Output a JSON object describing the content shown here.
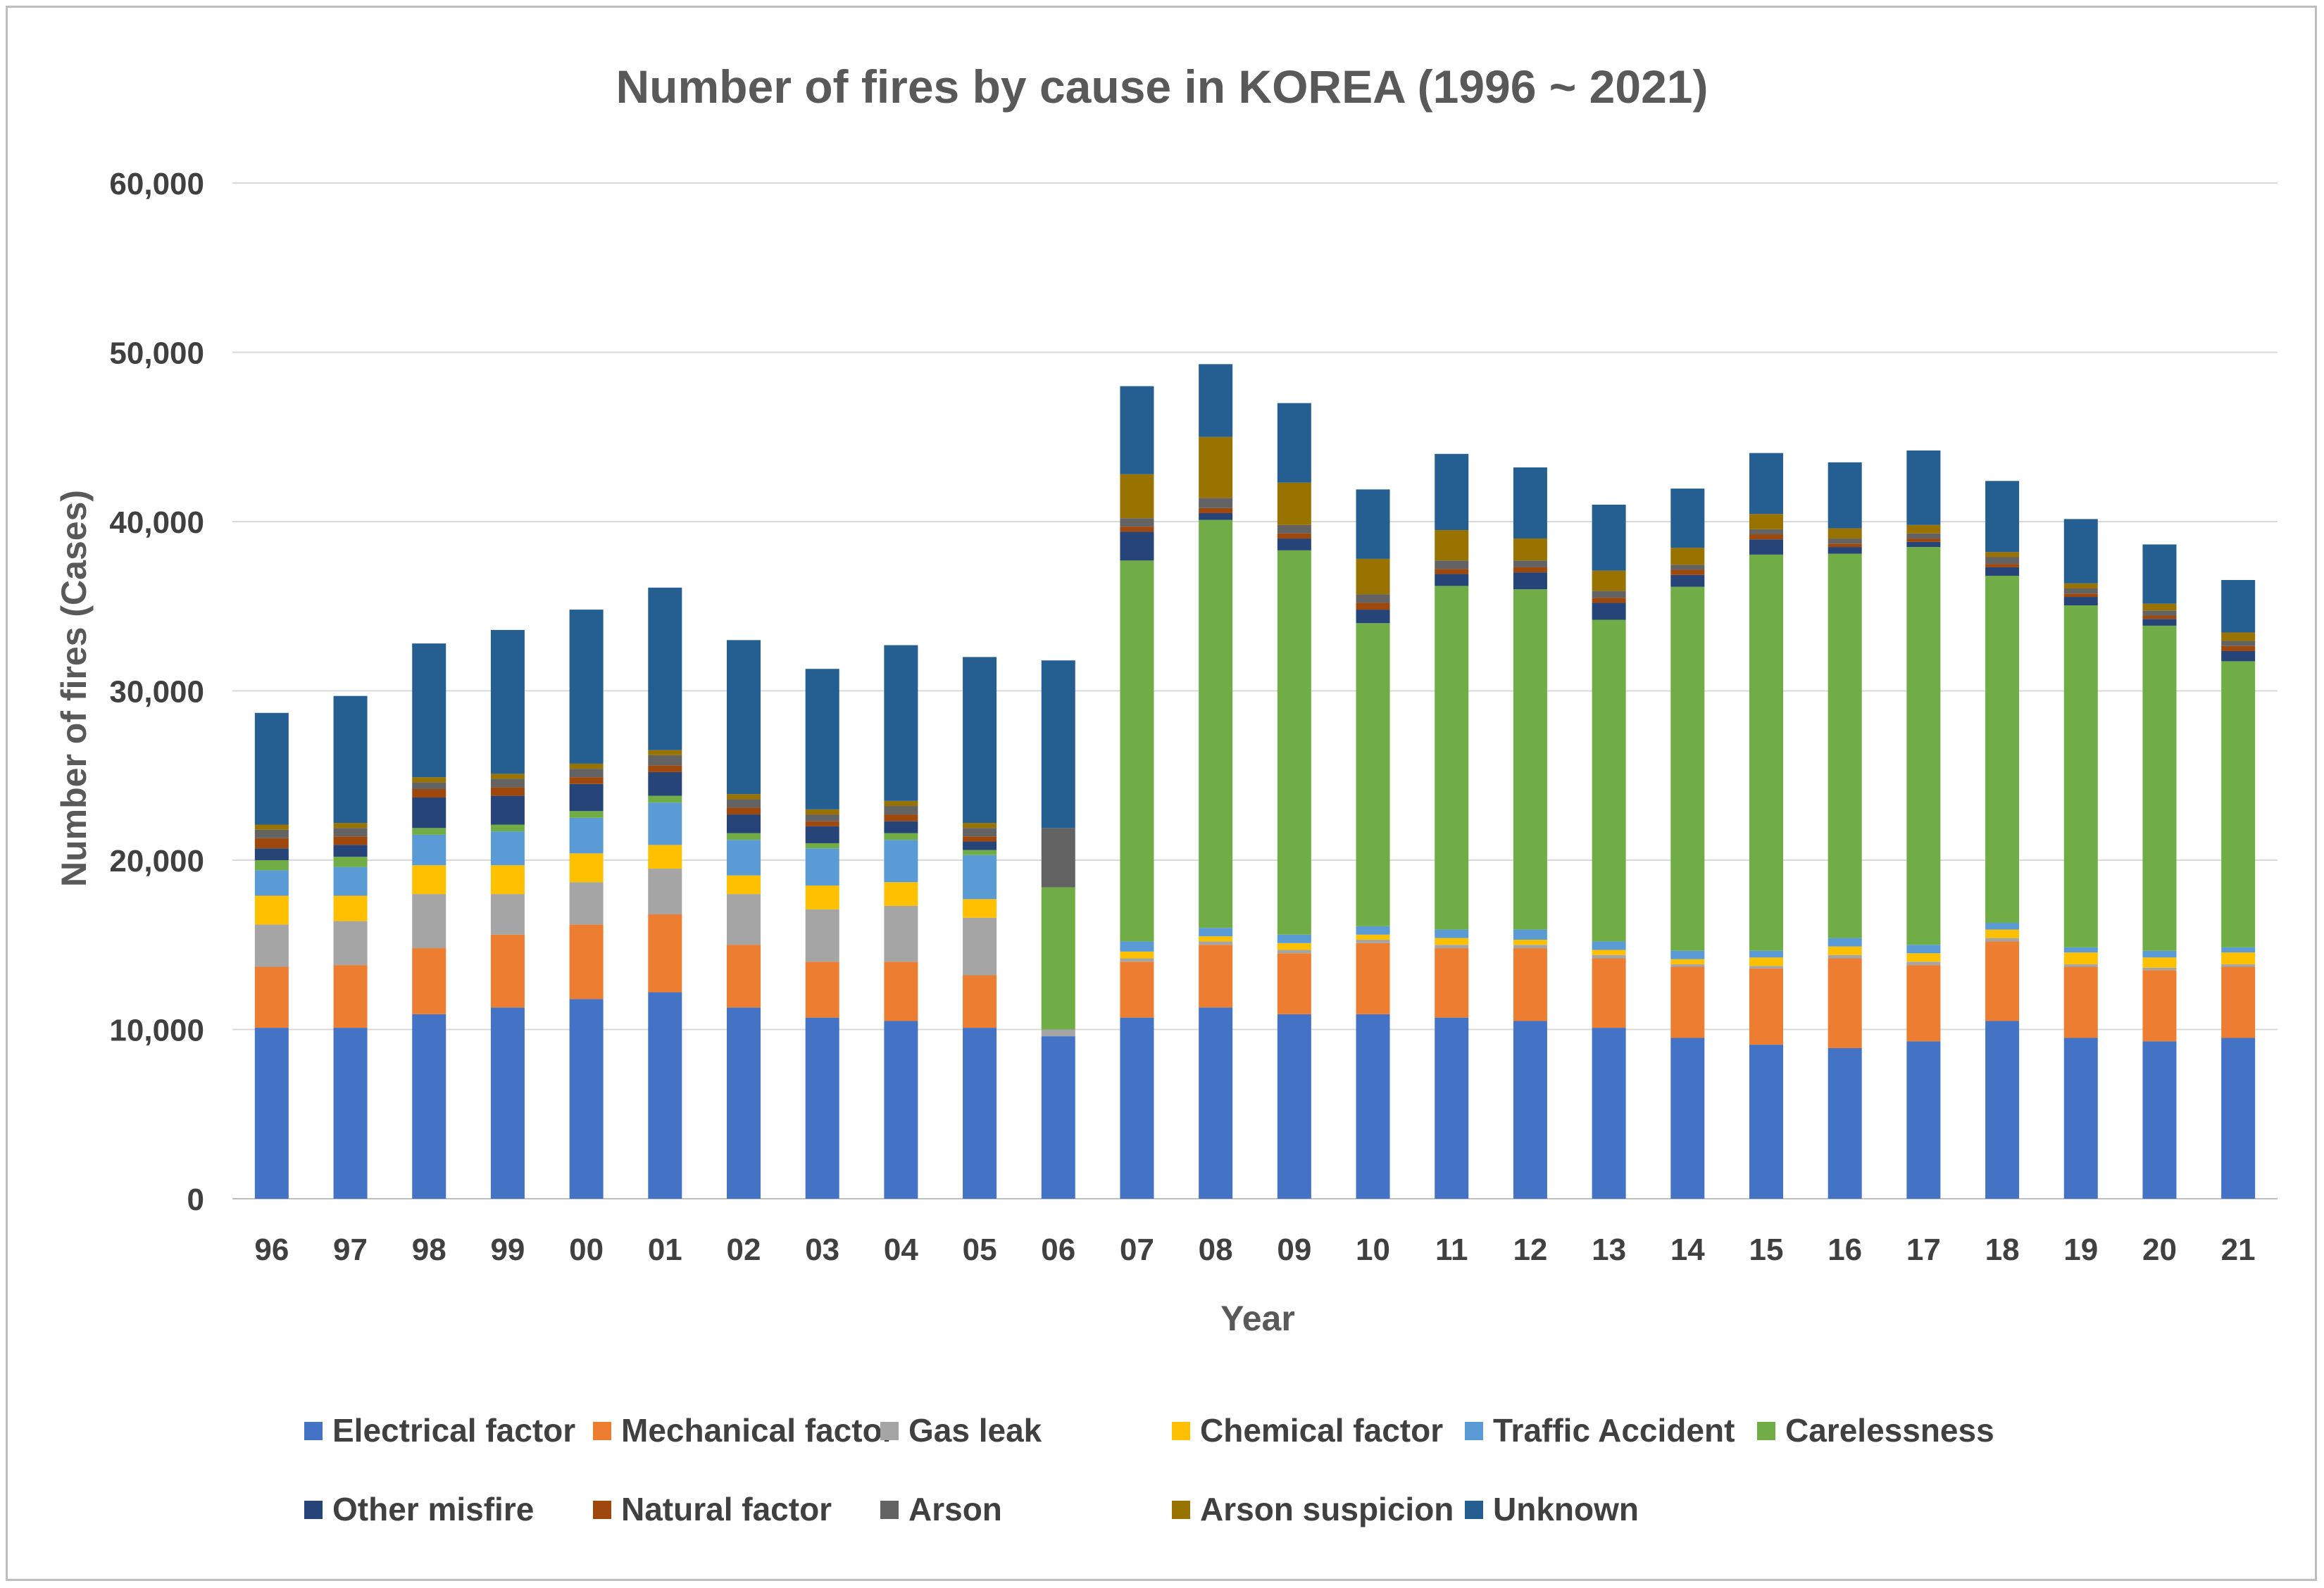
{
  "chart_data": {
    "type": "bar",
    "stacked": true,
    "title": "Number of fires by cause in KOREA (1996 ~ 2021)",
    "xlabel": "Year",
    "ylabel": "Number of fires (Cases)",
    "ylim": [
      0,
      60000
    ],
    "yticks": [
      0,
      10000,
      20000,
      30000,
      40000,
      50000,
      60000
    ],
    "ytick_labels": [
      "0",
      "10,000",
      "20,000",
      "30,000",
      "40,000",
      "50,000",
      "60,000"
    ],
    "grid": true,
    "legend_position": "bottom",
    "categories": [
      "96",
      "97",
      "98",
      "99",
      "00",
      "01",
      "02",
      "03",
      "04",
      "05",
      "06",
      "07",
      "08",
      "09",
      "10",
      "11",
      "12",
      "13",
      "14",
      "15",
      "16",
      "17",
      "18",
      "19",
      "20",
      "21"
    ],
    "series": [
      {
        "name": "Electrical factor",
        "color": "#4472C4",
        "values": [
          10100,
          10100,
          10900,
          11300,
          11800,
          12200,
          11300,
          10700,
          10500,
          10100,
          9600,
          10700,
          11300,
          10900,
          10900,
          10700,
          10500,
          10100,
          9500,
          9100,
          8900,
          9300,
          10500,
          9500,
          9300,
          9500
        ]
      },
      {
        "name": "Mechanical factor",
        "color": "#ED7D31",
        "values": [
          3600,
          3700,
          3900,
          4300,
          4400,
          4600,
          3700,
          3300,
          3500,
          3100,
          0,
          3300,
          3700,
          3600,
          4200,
          4100,
          4300,
          4100,
          4200,
          4500,
          5300,
          4500,
          4700,
          4200,
          4200,
          4200
        ]
      },
      {
        "name": "Gas leak",
        "color": "#A5A5A5",
        "values": [
          2500,
          2600,
          3200,
          2400,
          2500,
          2700,
          3000,
          3100,
          3300,
          3400,
          400,
          200,
          200,
          200,
          200,
          200,
          200,
          200,
          150,
          150,
          200,
          200,
          200,
          150,
          150,
          150
        ]
      },
      {
        "name": "Chemical factor",
        "color": "#FFC000",
        "values": [
          1700,
          1500,
          1700,
          1700,
          1700,
          1400,
          1100,
          1400,
          1400,
          1100,
          0,
          400,
          300,
          400,
          300,
          400,
          300,
          300,
          300,
          500,
          500,
          500,
          500,
          700,
          600,
          700
        ]
      },
      {
        "name": "Traffic Accident",
        "color": "#5B9BD5",
        "values": [
          1500,
          1700,
          1800,
          2000,
          2100,
          2500,
          2100,
          2200,
          2500,
          2600,
          0,
          600,
          500,
          500,
          500,
          500,
          600,
          500,
          500,
          400,
          500,
          500,
          400,
          300,
          400,
          300
        ]
      },
      {
        "name": "Carelessness",
        "color": "#70AD47",
        "values": [
          600,
          600,
          400,
          400,
          400,
          400,
          400,
          300,
          400,
          300,
          8400,
          22500,
          24100,
          22700,
          17900,
          20300,
          20100,
          19000,
          21500,
          23400,
          22700,
          23500,
          20500,
          20200,
          19200,
          16900
        ]
      },
      {
        "name": "Other misfire",
        "color": "#264478",
        "values": [
          700,
          700,
          1800,
          1700,
          1600,
          1400,
          1100,
          1000,
          700,
          500,
          0,
          1700,
          400,
          700,
          800,
          700,
          1000,
          1000,
          700,
          900,
          400,
          300,
          500,
          500,
          400,
          600
        ]
      },
      {
        "name": "Natural factor",
        "color": "#9E480E",
        "values": [
          600,
          500,
          500,
          500,
          400,
          400,
          400,
          300,
          400,
          300,
          0,
          300,
          300,
          300,
          400,
          300,
          300,
          300,
          300,
          300,
          200,
          200,
          200,
          200,
          200,
          300
        ]
      },
      {
        "name": "Arson",
        "color": "#636363",
        "values": [
          500,
          500,
          400,
          500,
          500,
          600,
          500,
          400,
          500,
          500,
          3500,
          500,
          600,
          500,
          500,
          500,
          400,
          400,
          300,
          300,
          300,
          300,
          400,
          300,
          300,
          300
        ]
      },
      {
        "name": "Arson suspicion",
        "color": "#997300",
        "values": [
          300,
          300,
          300,
          300,
          300,
          300,
          300,
          300,
          300,
          300,
          0,
          2600,
          3600,
          2500,
          2100,
          1800,
          1300,
          1200,
          1000,
          900,
          600,
          500,
          300,
          300,
          400,
          500
        ]
      },
      {
        "name": "Unknown",
        "color": "#255E91",
        "values": [
          6600,
          7500,
          7900,
          8500,
          9100,
          9600,
          9100,
          8300,
          9200,
          9800,
          9900,
          5200,
          4300,
          4700,
          4100,
          4500,
          4200,
          3900,
          3500,
          3600,
          3900,
          4400,
          4200,
          3800,
          3500,
          3100
        ]
      }
    ]
  }
}
